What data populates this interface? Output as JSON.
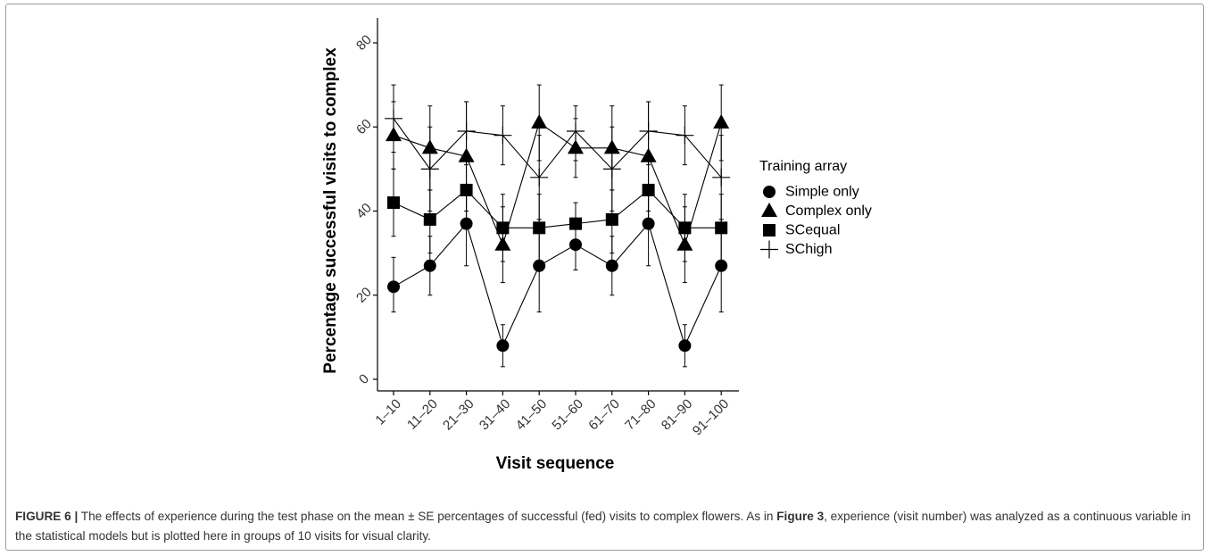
{
  "chart_data": {
    "type": "line",
    "xlabel": "Visit sequence",
    "ylabel": "Percentage successful visits to complex",
    "categories": [
      "1–10",
      "11–20",
      "21–30",
      "31–40",
      "41–50",
      "51–60",
      "61–70",
      "71–80",
      "81–90",
      "91–100"
    ],
    "y_ticks": [
      "0",
      "20",
      "40",
      "60",
      "80"
    ],
    "ylim": [
      0,
      80
    ],
    "grid": false,
    "legend_title": "Training array",
    "legend_position": "right",
    "series": [
      {
        "name": "Simple only",
        "marker": "circle",
        "values": [
          22,
          27,
          37,
          8,
          27,
          32,
          27,
          37,
          8,
          27
        ],
        "se_low": [
          16,
          20,
          27,
          3,
          16,
          26,
          20,
          27,
          3,
          16
        ],
        "se_high": [
          29,
          34,
          46,
          13,
          38,
          38,
          34,
          46,
          13,
          38
        ]
      },
      {
        "name": "Complex only",
        "marker": "triangle",
        "values": [
          58,
          55,
          53,
          32,
          61,
          55,
          55,
          53,
          32,
          61
        ],
        "se_low": [
          50,
          45,
          40,
          23,
          52,
          48,
          45,
          40,
          23,
          52
        ],
        "se_high": [
          66,
          65,
          66,
          41,
          70,
          62,
          65,
          66,
          41,
          70
        ]
      },
      {
        "name": "SCequal",
        "marker": "square",
        "values": [
          42,
          38,
          45,
          36,
          36,
          37,
          38,
          45,
          36,
          36
        ],
        "se_low": [
          34,
          30,
          38,
          28,
          28,
          32,
          30,
          38,
          28,
          28
        ],
        "se_high": [
          50,
          45,
          52,
          44,
          44,
          42,
          45,
          52,
          44,
          44
        ]
      },
      {
        "name": "SChigh",
        "marker": "plus",
        "values": [
          62,
          50,
          59,
          58,
          48,
          59,
          50,
          59,
          58,
          48
        ],
        "se_low": [
          54,
          40,
          51,
          51,
          38,
          52,
          40,
          51,
          51,
          38
        ],
        "se_high": [
          70,
          60,
          66,
          65,
          58,
          65,
          60,
          66,
          65,
          58
        ]
      }
    ]
  },
  "caption": {
    "label": "FIGURE 6 |",
    "text1": " The effects of experience during the test phase on the mean ± SE percentages of successful (fed) visits to complex flowers. As in ",
    "ref": "Figure 3",
    "text2": ", experience (visit number) was analyzed as a continuous variable in the statistical models but is plotted here in groups of 10 visits for visual clarity."
  }
}
